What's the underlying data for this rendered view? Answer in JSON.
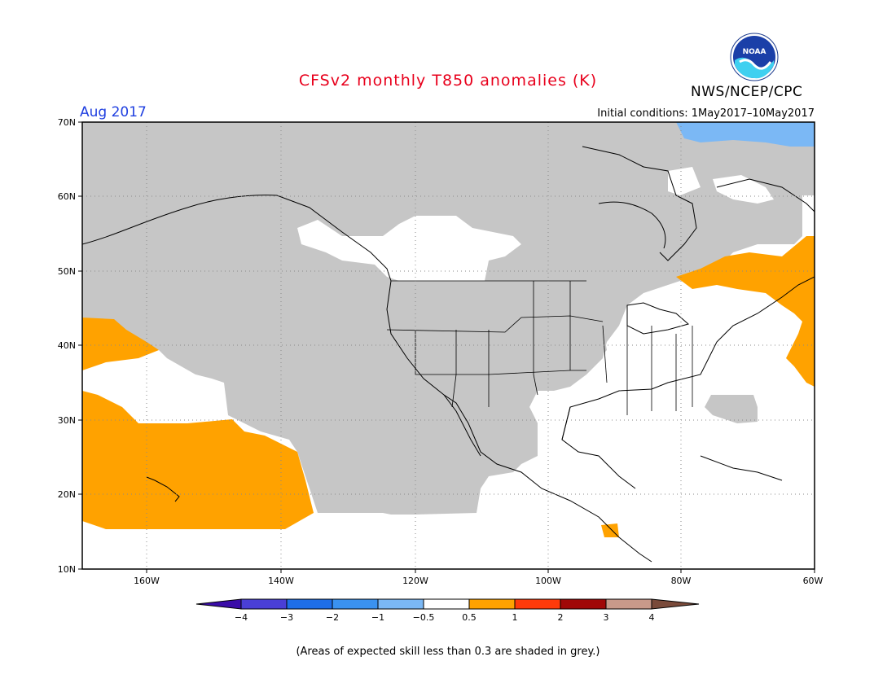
{
  "header": {
    "title": "CFSv2 monthly T850 anomalies (K)",
    "organization": "NWS/NCEP/CPC",
    "logo_text": "NOAA",
    "month": "Aug 2017",
    "initial_conditions": "Initial conditions: 1May2017–10May2017"
  },
  "map": {
    "lon_range": [
      -172,
      -60
    ],
    "lat_range": [
      10,
      70
    ],
    "lat_ticks": [
      "70N",
      "60N",
      "50N",
      "40N",
      "30N",
      "20N",
      "10N"
    ],
    "lon_ticks": [
      "160W",
      "140W",
      "120W",
      "100W",
      "80W",
      "60W"
    ]
  },
  "colorbar": {
    "labels": [
      "−4",
      "−3",
      "−2",
      "−1",
      "−0.5",
      "0.5",
      "1",
      "2",
      "3",
      "4"
    ],
    "colors": [
      "#3a0ca8",
      "#4a3fd6",
      "#1e6ee8",
      "#3a92f0",
      "#7bb8f5",
      "#ffffff",
      "#ffa200",
      "#ff3a0a",
      "#a00808",
      "#c8998a",
      "#7a4a3a"
    ]
  },
  "colors": {
    "grey_low_skill": "#c6c6c6",
    "anomaly_warm": "#ffa200",
    "anomaly_cool": "#7bb8f5"
  },
  "footnote": "(Areas of expected skill less than 0.3 are shaded in grey.)"
}
